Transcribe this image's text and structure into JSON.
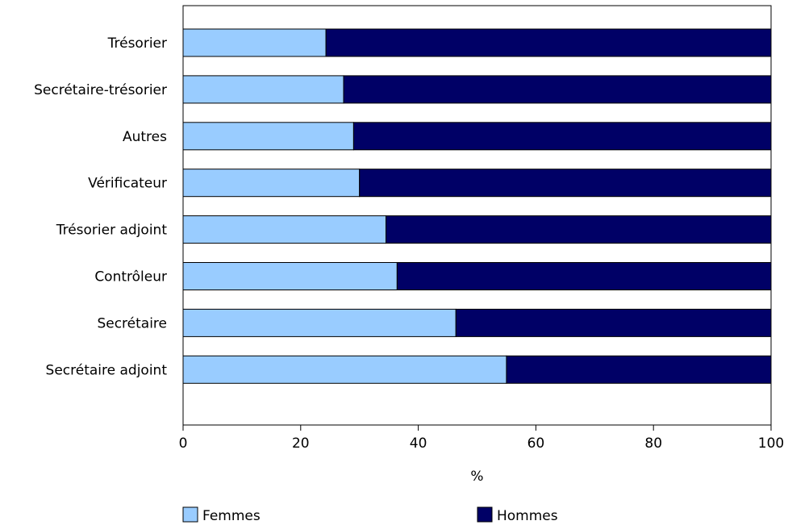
{
  "chart_data": {
    "type": "bar",
    "orientation": "horizontal",
    "stacked": true,
    "categories": [
      "Trésorier",
      "Secrétaire-trésorier",
      "Autres",
      "Vérificateur",
      "Trésorier adjoint",
      "Contrôleur",
      "Secrétaire",
      "Secrétaire adjoint"
    ],
    "series": [
      {
        "name": "Femmes",
        "color": "#99ccff",
        "values": [
          24.3,
          27.3,
          29.0,
          30.0,
          34.5,
          36.4,
          46.4,
          55.0
        ]
      },
      {
        "name": "Hommes",
        "color": "#000066",
        "values": [
          75.7,
          72.7,
          71.0,
          70.0,
          65.5,
          63.6,
          53.6,
          45.0
        ]
      }
    ],
    "xlabel": "%",
    "xlim": [
      0,
      100
    ],
    "xticks": [
      0,
      20,
      40,
      60,
      80,
      100
    ],
    "grid": false,
    "legend_position": "bottom"
  }
}
